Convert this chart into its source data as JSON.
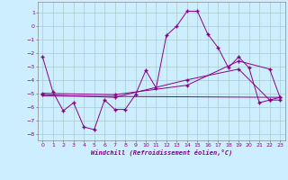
{
  "background_color": "#cceeff",
  "grid_color": "#aacccc",
  "line_color": "#880088",
  "xlabel": "Windchill (Refroidissement éolien,°C)",
  "xlim": [
    -0.5,
    23.5
  ],
  "ylim": [
    -8.5,
    1.8
  ],
  "yticks": [
    1,
    0,
    -1,
    -2,
    -3,
    -4,
    -5,
    -6,
    -7,
    -8
  ],
  "xticks": [
    0,
    1,
    2,
    3,
    4,
    5,
    6,
    7,
    8,
    9,
    10,
    11,
    12,
    13,
    14,
    15,
    16,
    17,
    18,
    19,
    20,
    21,
    22,
    23
  ],
  "series1_x": [
    0,
    1,
    2,
    3,
    4,
    5,
    6,
    7,
    8,
    9,
    10,
    11,
    12,
    13,
    14,
    15,
    16,
    17,
    18,
    19,
    20,
    21,
    22,
    23
  ],
  "series1_y": [
    -2.3,
    -4.9,
    -6.3,
    -5.7,
    -7.5,
    -7.7,
    -5.5,
    -6.2,
    -6.2,
    -5.1,
    -3.3,
    -4.6,
    -0.7,
    0.0,
    1.1,
    1.1,
    -0.6,
    -1.6,
    -3.1,
    -2.3,
    -3.1,
    -5.7,
    -5.5,
    -5.3
  ],
  "series2_x": [
    0,
    7,
    14,
    19,
    22,
    23
  ],
  "series2_y": [
    -5.0,
    -5.1,
    -4.4,
    -2.6,
    -3.2,
    -5.3
  ],
  "series3_x": [
    0,
    7,
    14,
    19,
    22,
    23
  ],
  "series3_y": [
    -5.1,
    -5.3,
    -4.0,
    -3.2,
    -5.5,
    -5.5
  ],
  "series4_x": [
    0,
    23
  ],
  "series4_y": [
    -5.2,
    -5.3
  ]
}
